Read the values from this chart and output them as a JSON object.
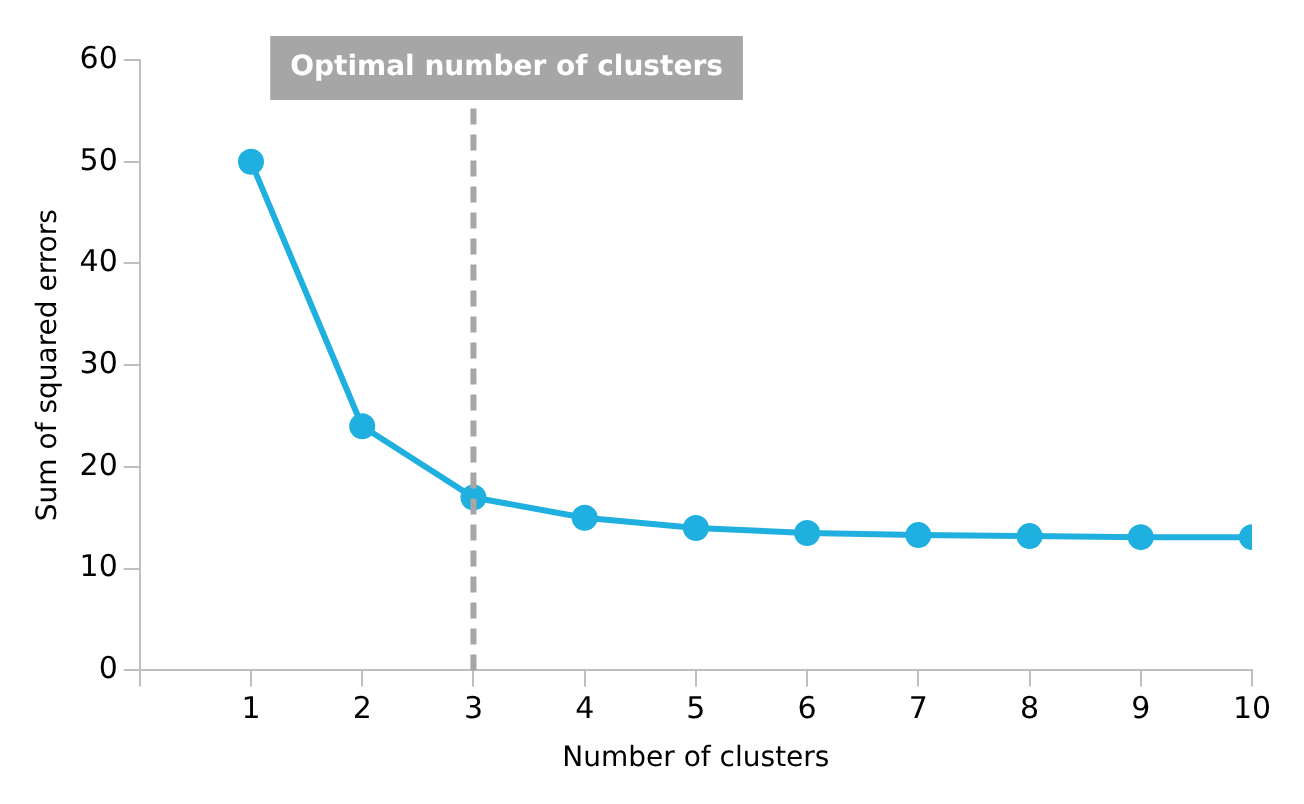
{
  "chart_data": {
    "type": "line",
    "xlabel": "Number of clusters",
    "ylabel": "Sum of squared errors",
    "x": [
      1,
      2,
      3,
      4,
      5,
      6,
      7,
      8,
      9,
      10
    ],
    "series": [
      {
        "color": "#1fb0e0",
        "values": [
          50,
          24,
          17,
          15,
          14,
          13.5,
          13.3,
          13.2,
          13.1,
          13.1
        ]
      }
    ],
    "xlim": [
      0,
      10
    ],
    "xticks": [
      {
        "value": 0,
        "label": null
      },
      1,
      2,
      3,
      4,
      5,
      6,
      7,
      8,
      9,
      10
    ],
    "ylim": [
      0,
      60
    ],
    "yticks": [
      0,
      10,
      20,
      30,
      40,
      50,
      60
    ],
    "ref_lines": [
      {
        "axis": "x",
        "value": 3,
        "label": "Optimal number of clusters",
        "color": "#a6a6a6",
        "line_style": "dashed"
      }
    ],
    "grid": false,
    "legend": false,
    "marker": "circle",
    "line_style": "solid"
  }
}
